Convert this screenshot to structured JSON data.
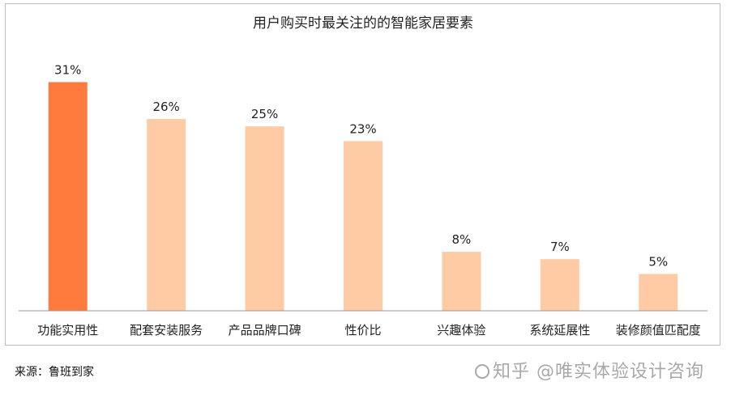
{
  "chart_data": {
    "type": "bar",
    "title": "用户购买时最关注的的智能家居要素",
    "categories": [
      "功能实用性",
      "配套安装服务",
      "产品品牌口碑",
      "性价比",
      "兴趣体验",
      "系统延展性",
      "装修颜值匹配度"
    ],
    "values": [
      31,
      26,
      25,
      23,
      8,
      7,
      5
    ],
    "value_labels": [
      "31%",
      "26%",
      "25%",
      "23%",
      "8%",
      "7%",
      "5%"
    ],
    "unit": "%",
    "ylim": [
      0,
      35
    ],
    "grid": false,
    "legend": "none",
    "colors": {
      "highlight": "#FF7A3D",
      "normal": "#FFCBA4",
      "axis": "#999999",
      "text": "#222222"
    }
  },
  "footer": {
    "source": "来源：鲁班到家",
    "watermark": "知乎 @唯实体验设计咨询"
  }
}
